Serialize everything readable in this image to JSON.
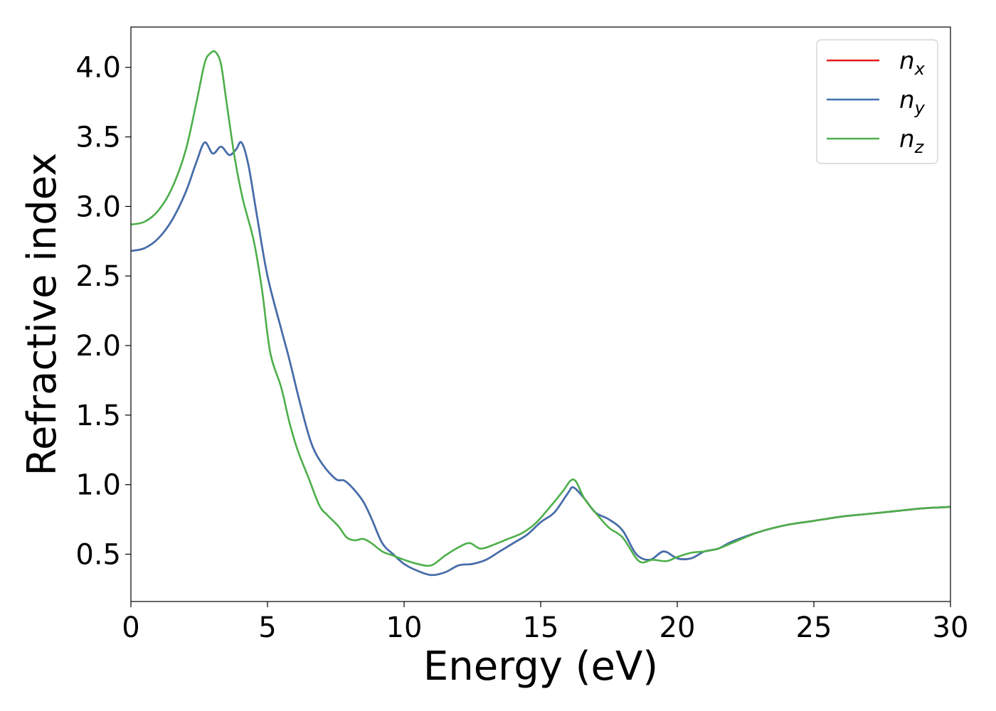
{
  "chart_data": {
    "type": "line",
    "xlabel": "Energy (eV)",
    "ylabel": "Refractive index",
    "xlim": [
      0,
      30
    ],
    "ylim": [
      0.16,
      4.29
    ],
    "xticks": [
      0,
      5,
      10,
      15,
      20,
      25,
      30
    ],
    "xtick_labels": [
      "0",
      "5",
      "10",
      "15",
      "20",
      "25",
      "30"
    ],
    "yticks": [
      0.5,
      1.0,
      1.5,
      2.0,
      2.5,
      3.0,
      3.5,
      4.0
    ],
    "ytick_labels": [
      "0.5",
      "1.0",
      "1.5",
      "2.0",
      "2.5",
      "3.0",
      "3.5",
      "4.0"
    ],
    "grid": false,
    "legend_position": "top-right",
    "series": [
      {
        "name": "n",
        "subscript": "x",
        "color": "#e41a1c",
        "x": [
          0,
          0.5,
          1,
          1.5,
          2,
          2.4,
          2.7,
          3.0,
          3.3,
          3.6,
          3.85,
          4.05,
          4.3,
          4.6,
          5.0,
          5.5,
          5.8,
          6.2,
          6.6,
          7.0,
          7.5,
          7.8,
          8.1,
          8.5,
          8.8,
          9.2,
          9.6,
          10,
          10.5,
          11,
          11.5,
          12,
          12.5,
          13,
          13.5,
          14,
          14.5,
          15,
          15.5,
          16,
          16.2,
          16.6,
          17,
          17.5,
          18,
          18.5,
          19,
          19.5,
          20,
          20.5,
          21,
          21.5,
          22,
          23,
          24,
          25,
          26,
          27,
          28,
          29,
          30
        ],
        "y": [
          2.68,
          2.7,
          2.77,
          2.9,
          3.1,
          3.32,
          3.46,
          3.38,
          3.43,
          3.37,
          3.41,
          3.46,
          3.3,
          2.95,
          2.5,
          2.12,
          1.9,
          1.58,
          1.3,
          1.15,
          1.04,
          1.03,
          0.98,
          0.88,
          0.76,
          0.58,
          0.5,
          0.43,
          0.38,
          0.35,
          0.37,
          0.42,
          0.43,
          0.46,
          0.52,
          0.58,
          0.64,
          0.73,
          0.8,
          0.94,
          0.98,
          0.9,
          0.8,
          0.75,
          0.67,
          0.5,
          0.46,
          0.52,
          0.47,
          0.47,
          0.52,
          0.54,
          0.59,
          0.66,
          0.71,
          0.74,
          0.77,
          0.79,
          0.81,
          0.83,
          0.84
        ]
      },
      {
        "name": "n",
        "subscript": "y",
        "color": "#3f70b0",
        "x": [
          0,
          0.5,
          1,
          1.5,
          2,
          2.4,
          2.7,
          3.0,
          3.3,
          3.6,
          3.85,
          4.05,
          4.3,
          4.6,
          5.0,
          5.5,
          5.8,
          6.2,
          6.6,
          7.0,
          7.5,
          7.8,
          8.1,
          8.5,
          8.8,
          9.2,
          9.6,
          10,
          10.5,
          11,
          11.5,
          12,
          12.5,
          13,
          13.5,
          14,
          14.5,
          15,
          15.5,
          16,
          16.2,
          16.6,
          17,
          17.5,
          18,
          18.5,
          19,
          19.5,
          20,
          20.5,
          21,
          21.5,
          22,
          23,
          24,
          25,
          26,
          27,
          28,
          29,
          30
        ],
        "y": [
          2.68,
          2.7,
          2.77,
          2.9,
          3.1,
          3.32,
          3.46,
          3.38,
          3.43,
          3.37,
          3.41,
          3.46,
          3.3,
          2.95,
          2.5,
          2.12,
          1.9,
          1.58,
          1.3,
          1.15,
          1.04,
          1.03,
          0.98,
          0.88,
          0.76,
          0.58,
          0.5,
          0.43,
          0.38,
          0.35,
          0.37,
          0.42,
          0.43,
          0.46,
          0.52,
          0.58,
          0.64,
          0.73,
          0.8,
          0.94,
          0.98,
          0.9,
          0.8,
          0.75,
          0.67,
          0.5,
          0.46,
          0.52,
          0.47,
          0.47,
          0.52,
          0.54,
          0.59,
          0.66,
          0.71,
          0.74,
          0.77,
          0.79,
          0.81,
          0.83,
          0.84
        ]
      },
      {
        "name": "n",
        "subscript": "z",
        "color": "#4daf4a",
        "x": [
          0,
          0.5,
          1,
          1.5,
          2,
          2.4,
          2.7,
          2.9,
          3.1,
          3.3,
          3.5,
          3.8,
          4.1,
          4.5,
          4.8,
          5.1,
          5.5,
          5.8,
          6.1,
          6.5,
          6.9,
          7.2,
          7.6,
          7.9,
          8.2,
          8.5,
          8.8,
          9.2,
          9.6,
          10,
          10.5,
          11,
          11.5,
          12,
          12.4,
          12.8,
          13.3,
          13.8,
          14.3,
          14.8,
          15.3,
          15.8,
          16.1,
          16.3,
          16.6,
          17,
          17.5,
          18,
          18.6,
          19.1,
          19.6,
          20,
          20.5,
          21,
          21.5,
          22,
          23,
          24,
          25,
          26,
          27,
          28,
          29,
          30
        ],
        "y": [
          2.87,
          2.89,
          2.97,
          3.13,
          3.4,
          3.75,
          4.03,
          4.1,
          4.11,
          4.02,
          3.75,
          3.35,
          3.05,
          2.75,
          2.4,
          1.95,
          1.7,
          1.45,
          1.25,
          1.05,
          0.85,
          0.78,
          0.7,
          0.62,
          0.6,
          0.61,
          0.58,
          0.52,
          0.49,
          0.46,
          0.43,
          0.42,
          0.49,
          0.55,
          0.58,
          0.54,
          0.57,
          0.61,
          0.65,
          0.72,
          0.83,
          0.95,
          1.03,
          1.02,
          0.9,
          0.8,
          0.69,
          0.62,
          0.45,
          0.46,
          0.45,
          0.48,
          0.51,
          0.52,
          0.54,
          0.58,
          0.66,
          0.71,
          0.74,
          0.77,
          0.79,
          0.81,
          0.83,
          0.84
        ]
      }
    ]
  }
}
